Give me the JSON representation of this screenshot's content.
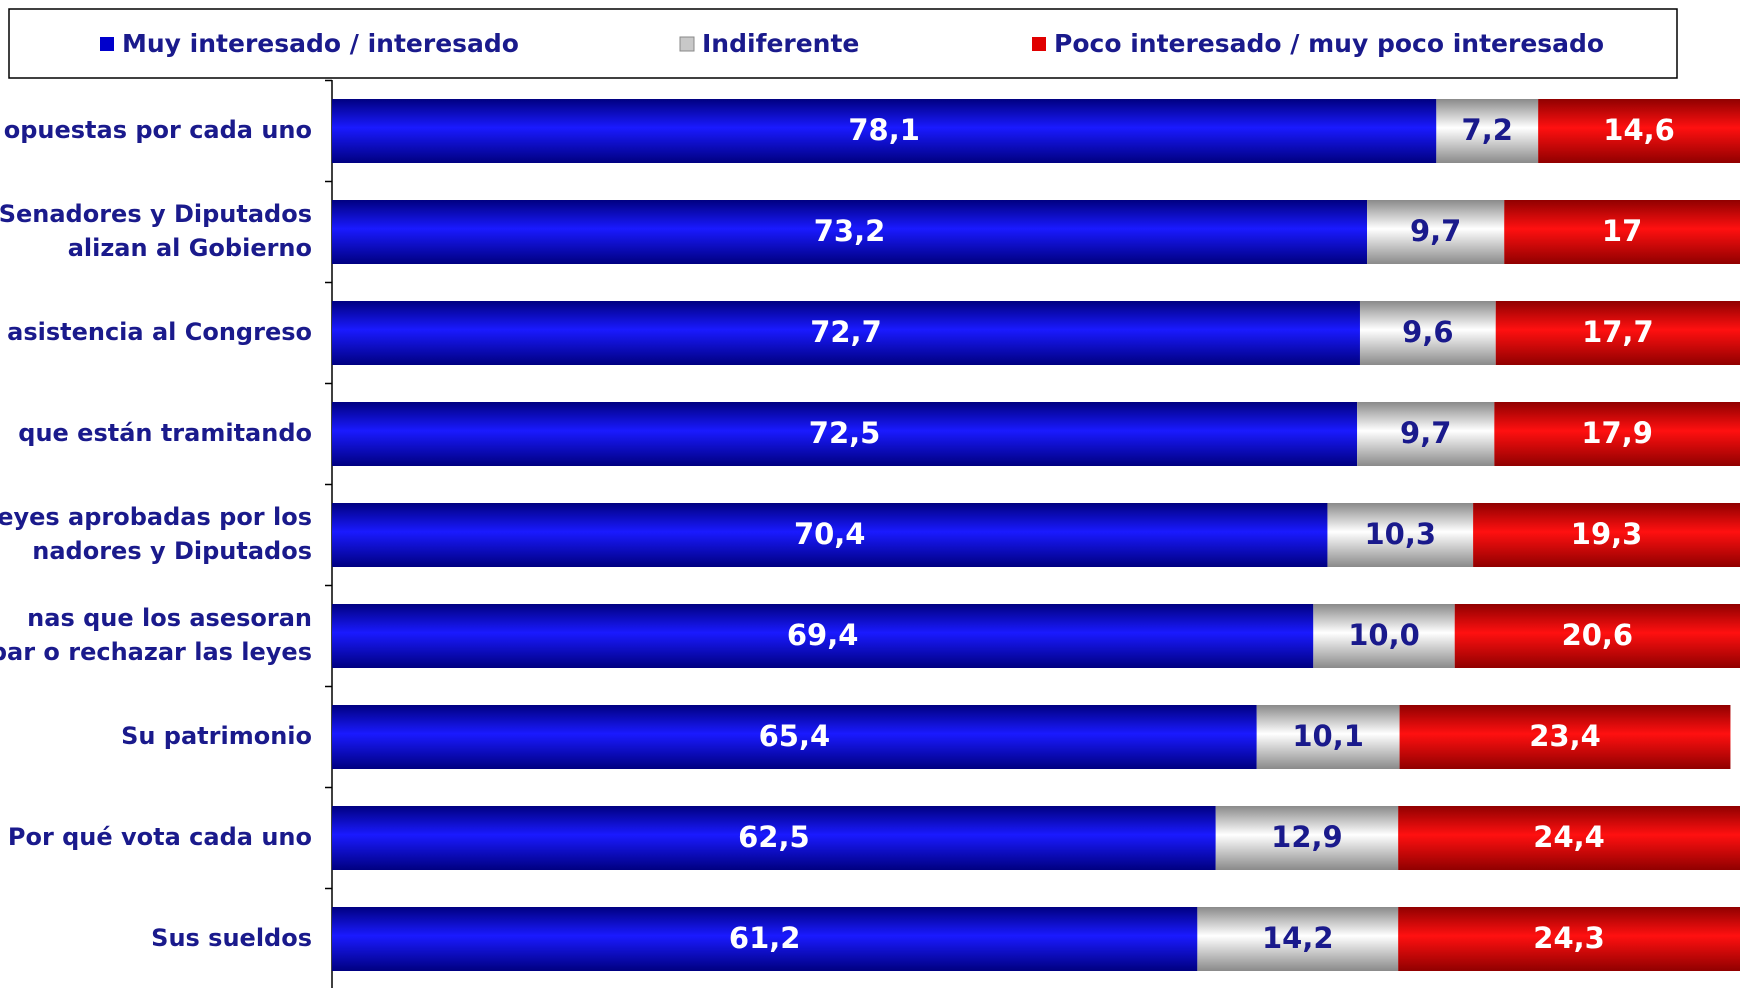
{
  "chart_data": {
    "type": "stacked-bar-horizontal",
    "categories": [
      "opuestas por cada uno",
      "Senadores y Diputados\nalizan al Gobierno",
      "asistencia al Congreso",
      "que están tramitando",
      "eyes aprobadas por los\nnadores y Diputados",
      "nas  que los asesoran\nbar o rechazar las leyes",
      "Su patrimonio",
      "Por qué vota cada uno",
      "Sus sueldos"
    ],
    "series": [
      {
        "name": "Muy interesado / interesado",
        "color": "#0000cc",
        "values": [
          78.1,
          73.2,
          72.7,
          72.5,
          70.4,
          69.4,
          65.4,
          62.5,
          61.2
        ],
        "value_labels": [
          "78,1",
          "73,2",
          "72,7",
          "72,5",
          "70,4",
          "69,4",
          "65,4",
          "62,5",
          "61,2"
        ]
      },
      {
        "name": "Indiferente",
        "color": "#c8c8c8",
        "values": [
          7.2,
          9.7,
          9.6,
          9.7,
          10.3,
          10.0,
          10.1,
          12.9,
          14.2
        ],
        "value_labels": [
          "7,2",
          "9,7",
          "9,6",
          "9,7",
          "10,3",
          "10,0",
          "10,1",
          "12,9",
          "14,2"
        ]
      },
      {
        "name": "Poco interesado / muy poco interesado",
        "color": "#e00000",
        "values": [
          14.6,
          17,
          17.7,
          17.9,
          19.3,
          20.6,
          23.4,
          24.4,
          24.3
        ],
        "value_labels": [
          "14,6",
          "17",
          "17,7",
          "17,9",
          "19,3",
          "20,6",
          "23,4",
          "24,4",
          "24,3"
        ]
      }
    ],
    "xlim": [
      0,
      100
    ]
  }
}
